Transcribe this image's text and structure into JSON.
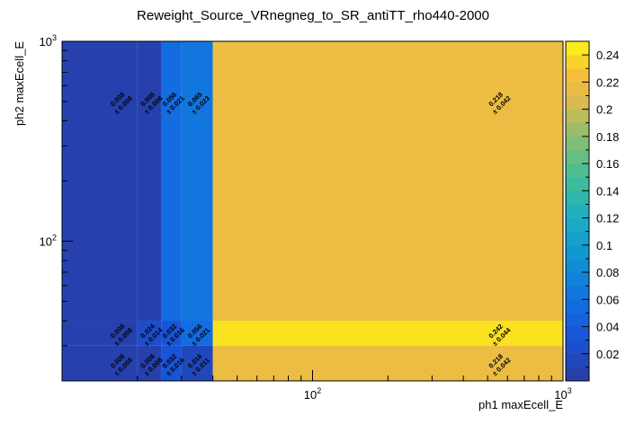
{
  "chart_data": {
    "type": "heatmap",
    "title": "Reweight_Source_VRnegneg_to_SR_antiTT_rho440-2000",
    "xlabel": "ph1 maxEcell_E",
    "ylabel": "ph2 maxEcell_E",
    "x_scale": "log",
    "y_scale": "log",
    "xlim": [
      10,
      1000
    ],
    "ylim": [
      20,
      1000
    ],
    "x_major_ticks": [
      {
        "value": 100,
        "label": "10",
        "exp": "2"
      },
      {
        "value": 1000,
        "label": "10",
        "exp": "3"
      }
    ],
    "y_major_ticks": [
      {
        "value": 100,
        "label": "10",
        "exp": "2"
      },
      {
        "value": 1000,
        "label": "10",
        "exp": "3"
      }
    ],
    "x_bin_edges": [
      10,
      20,
      25,
      30,
      40,
      1000
    ],
    "y_bin_edges": [
      20,
      30,
      40,
      1000
    ],
    "z_range": [
      0,
      0.25
    ],
    "colorbar_ticks": [
      0.02,
      0.04,
      0.06,
      0.08,
      0.1,
      0.12,
      0.14,
      0.16,
      0.18,
      0.2,
      0.22,
      0.24
    ],
    "colorbar_tick_labels": [
      "0.02",
      "0.04",
      "0.06",
      "0.08",
      "0.1",
      "0.12",
      "0.14",
      "0.16",
      "0.18",
      "0.2",
      "0.22",
      "0.24"
    ],
    "cells": [
      {
        "x0": 10,
        "x1": 20,
        "y0": 40,
        "y1": 1000,
        "value": 0.008,
        "value_text": "0.008",
        "error_text": "± 0.008",
        "label_x": 17,
        "label_y": 500
      },
      {
        "x0": 10,
        "x1": 20,
        "y0": 30,
        "y1": 40,
        "value": 0.008,
        "value_text": "0.008",
        "error_text": "± 0.008",
        "label_x": 17,
        "label_y": 34.6
      },
      {
        "x0": 10,
        "x1": 20,
        "y0": 20,
        "y1": 30,
        "value": 0.008,
        "value_text": "0.008",
        "error_text": "± 0.008",
        "label_x": 17,
        "label_y": 24.5
      },
      {
        "x0": 20,
        "x1": 25,
        "y0": 40,
        "y1": 1000,
        "value": 0.008,
        "value_text": "0.008",
        "error_text": "± 0.008",
        "label_x": 22.4,
        "label_y": 500
      },
      {
        "x0": 20,
        "x1": 25,
        "y0": 30,
        "y1": 40,
        "value": 0.024,
        "value_text": "0.024",
        "error_text": "± 0.014",
        "label_x": 22.4,
        "label_y": 34.6
      },
      {
        "x0": 20,
        "x1": 25,
        "y0": 20,
        "y1": 30,
        "value": 0.008,
        "value_text": "0.008",
        "error_text": "± 0.008",
        "label_x": 22.4,
        "label_y": 24.5
      },
      {
        "x0": 25,
        "x1": 30,
        "y0": 40,
        "y1": 1000,
        "value": 0.056,
        "value_text": "0.056",
        "error_text": "± 0.021",
        "label_x": 27.4,
        "label_y": 500
      },
      {
        "x0": 25,
        "x1": 30,
        "y0": 30,
        "y1": 40,
        "value": 0.032,
        "value_text": "0.032",
        "error_text": "± 0.016",
        "label_x": 27.4,
        "label_y": 34.6
      },
      {
        "x0": 25,
        "x1": 30,
        "y0": 20,
        "y1": 30,
        "value": 0.032,
        "value_text": "0.032",
        "error_text": "± 0.016",
        "label_x": 27.4,
        "label_y": 24.5
      },
      {
        "x0": 30,
        "x1": 40,
        "y0": 40,
        "y1": 1000,
        "value": 0.065,
        "value_text": "0.065",
        "error_text": "± 0.023",
        "label_x": 34.6,
        "label_y": 500
      },
      {
        "x0": 30,
        "x1": 40,
        "y0": 30,
        "y1": 40,
        "value": 0.056,
        "value_text": "0.056",
        "error_text": "± 0.021",
        "label_x": 34.6,
        "label_y": 34.6
      },
      {
        "x0": 30,
        "x1": 40,
        "y0": 20,
        "y1": 30,
        "value": 0.016,
        "value_text": "0.016",
        "error_text": "± 0.011",
        "label_x": 34.6,
        "label_y": 24.5
      },
      {
        "x0": 40,
        "x1": 1000,
        "y0": 40,
        "y1": 1000,
        "value": 0.218,
        "value_text": "0.218",
        "error_text": "± 0.042",
        "label_x": 550,
        "label_y": 500
      },
      {
        "x0": 40,
        "x1": 1000,
        "y0": 30,
        "y1": 40,
        "value": 0.242,
        "value_text": "0.242",
        "error_text": "± 0.044",
        "label_x": 550,
        "label_y": 34.6
      },
      {
        "x0": 40,
        "x1": 1000,
        "y0": 20,
        "y1": 30,
        "value": 0.218,
        "value_text": "0.218",
        "error_text": "± 0.042",
        "label_x": 550,
        "label_y": 24.5
      }
    ]
  }
}
